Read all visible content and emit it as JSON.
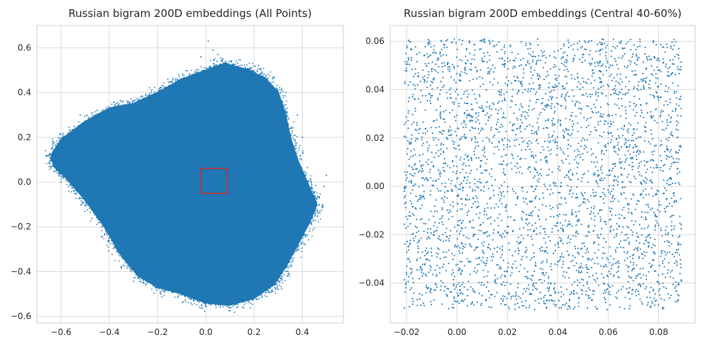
{
  "chart_data": [
    {
      "type": "scatter",
      "title": "Russian bigram 200D embeddings (All Points)",
      "xlabel": "",
      "ylabel": "",
      "xlim": [
        -0.7,
        0.57
      ],
      "ylim": [
        -0.63,
        0.7
      ],
      "xticks": [
        -0.6,
        -0.4,
        -0.2,
        0.0,
        0.2,
        0.4
      ],
      "xtick_labels": [
        "−0.6",
        "−0.4",
        "−0.2",
        "0.0",
        "0.2",
        "0.4"
      ],
      "yticks": [
        -0.6,
        -0.4,
        -0.2,
        0.0,
        0.2,
        0.4,
        0.6
      ],
      "ytick_labels": [
        "−0.6",
        "−0.4",
        "−0.2",
        "0.0",
        "0.2",
        "0.4",
        "0.6"
      ],
      "grid": true,
      "point_color": "#1f77b4",
      "highlight_box": {
        "x0": -0.021,
        "x1": 0.089,
        "y0": -0.051,
        "y1": 0.061,
        "color": "#d62728"
      },
      "cloud_outline": [
        [
          -0.64,
          0.12
        ],
        [
          -0.6,
          0.19
        ],
        [
          -0.5,
          0.27
        ],
        [
          -0.4,
          0.33
        ],
        [
          -0.3,
          0.35
        ],
        [
          -0.2,
          0.4
        ],
        [
          -0.1,
          0.46
        ],
        [
          0.0,
          0.5
        ],
        [
          0.08,
          0.53
        ],
        [
          0.18,
          0.5
        ],
        [
          0.25,
          0.46
        ],
        [
          0.3,
          0.4
        ],
        [
          0.33,
          0.3
        ],
        [
          0.35,
          0.2
        ],
        [
          0.38,
          0.1
        ],
        [
          0.42,
          0.0
        ],
        [
          0.46,
          -0.1
        ],
        [
          0.43,
          -0.18
        ],
        [
          0.38,
          -0.28
        ],
        [
          0.33,
          -0.38
        ],
        [
          0.28,
          -0.46
        ],
        [
          0.2,
          -0.52
        ],
        [
          0.1,
          -0.55
        ],
        [
          0.0,
          -0.54
        ],
        [
          -0.1,
          -0.5
        ],
        [
          -0.2,
          -0.47
        ],
        [
          -0.28,
          -0.42
        ],
        [
          -0.35,
          -0.33
        ],
        [
          -0.42,
          -0.2
        ],
        [
          -0.5,
          -0.08
        ],
        [
          -0.58,
          0.02
        ],
        [
          -0.63,
          0.07
        ]
      ],
      "outlier_points": [
        [
          0.01,
          0.63
        ],
        [
          0.03,
          0.59
        ],
        [
          0.05,
          0.57
        ],
        [
          -0.02,
          0.56
        ],
        [
          0.07,
          0.55
        ],
        [
          0.49,
          -0.02
        ],
        [
          0.5,
          0.03
        ],
        [
          0.47,
          -0.07
        ],
        [
          0.45,
          -0.13
        ],
        [
          0.43,
          -0.22
        ],
        [
          -0.63,
          0.13
        ],
        [
          -0.61,
          0.16
        ],
        [
          -0.6,
          0.0
        ],
        [
          -0.52,
          0.3
        ],
        [
          -0.45,
          0.32
        ],
        [
          0.12,
          -0.55
        ],
        [
          0.06,
          -0.56
        ],
        [
          -0.05,
          -0.53
        ],
        [
          -0.25,
          -0.46
        ],
        [
          0.3,
          -0.48
        ],
        [
          0.34,
          -0.42
        ],
        [
          -0.35,
          -0.38
        ],
        [
          -0.4,
          -0.26
        ],
        [
          0.4,
          0.2
        ],
        [
          0.38,
          0.3
        ]
      ]
    },
    {
      "type": "scatter",
      "title": "Russian bigram 200D embeddings (Central 40-60%)",
      "xlabel": "",
      "ylabel": "",
      "xlim": [
        -0.0265,
        0.0945
      ],
      "ylim": [
        -0.0565,
        0.0665
      ],
      "xticks": [
        -0.02,
        0.0,
        0.02,
        0.04,
        0.06,
        0.08
      ],
      "xtick_labels": [
        "−0.02",
        "0.00",
        "0.02",
        "0.04",
        "0.06",
        "0.08"
      ],
      "yticks": [
        -0.04,
        -0.02,
        0.0,
        0.02,
        0.04,
        0.06
      ],
      "ytick_labels": [
        "−0.04",
        "−0.02",
        "0.00",
        "0.02",
        "0.04",
        "0.06"
      ],
      "grid": true,
      "point_color": "#1f77b4",
      "uniform_region": {
        "x0": -0.021,
        "x1": 0.089,
        "y0": -0.051,
        "y1": 0.061
      },
      "approx_point_count": 3600
    }
  ]
}
